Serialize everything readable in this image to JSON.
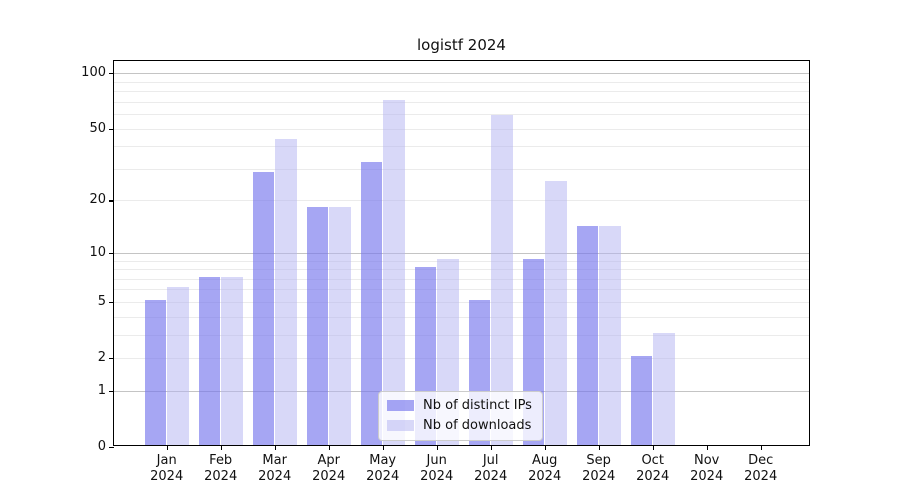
{
  "chart_data": {
    "type": "bar",
    "title": "logistf 2024",
    "y_axis": {
      "scale": "log10(value+1)",
      "range": [
        0,
        100
      ],
      "ticks": [
        0,
        1,
        2,
        5,
        10,
        20,
        50,
        100
      ],
      "minor_gridlines": [
        2,
        3,
        4,
        5,
        6,
        7,
        8,
        9,
        20,
        30,
        40,
        50,
        60,
        70,
        80,
        90
      ],
      "major_gridlines": [
        1,
        10,
        100
      ]
    },
    "categories": [
      {
        "month": "Jan",
        "year": "2024"
      },
      {
        "month": "Feb",
        "year": "2024"
      },
      {
        "month": "Mar",
        "year": "2024"
      },
      {
        "month": "Apr",
        "year": "2024"
      },
      {
        "month": "May",
        "year": "2024"
      },
      {
        "month": "Jun",
        "year": "2024"
      },
      {
        "month": "Jul",
        "year": "2024"
      },
      {
        "month": "Aug",
        "year": "2024"
      },
      {
        "month": "Sep",
        "year": "2024"
      },
      {
        "month": "Oct",
        "year": "2024"
      },
      {
        "month": "Nov",
        "year": "2024"
      },
      {
        "month": "Dec",
        "year": "2024"
      }
    ],
    "series": [
      {
        "key": "distinct-ips",
        "name": "Nb of distinct IPs",
        "color": "rgba(118,118,237,0.65)",
        "values": [
          5,
          7,
          28,
          18,
          32,
          8,
          5,
          9,
          14,
          2,
          0,
          0
        ]
      },
      {
        "key": "downloads",
        "name": "Nb of downloads",
        "color": "rgba(178,178,242,0.5)",
        "values": [
          6,
          7,
          43,
          18,
          70,
          9,
          58,
          25,
          14,
          3,
          0,
          0
        ]
      }
    ],
    "legend": {
      "position": "lower center"
    },
    "grid": true
  },
  "colors": {
    "distinct_ips_bar": "rgba(118,118,237,0.65)",
    "downloads_bar": "rgba(178,178,242,0.5)",
    "major_gridline": "#c4c4c4",
    "minor_gridline": "#ebebeb",
    "axis": "#000000",
    "background": "#ffffff"
  }
}
